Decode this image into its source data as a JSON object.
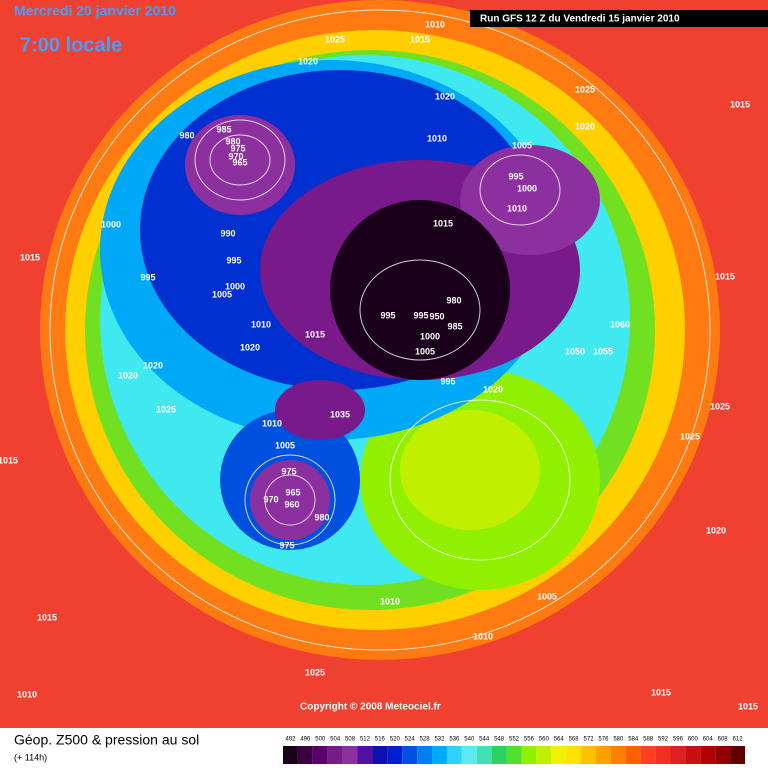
{
  "header": {
    "date": "Mercredi 20 janvier 2010",
    "time": "7:00 locale",
    "run": "Run GFS 12 Z du Vendredi 15 janvier 2010"
  },
  "copyright": "Copyright © 2008 Meteociel.fr",
  "legend": {
    "title": "Géop. Z500 & pression au sol",
    "lead": "(+ 114h)",
    "scale": [
      492,
      496,
      500,
      504,
      508,
      512,
      516,
      520,
      524,
      528,
      532,
      536,
      540,
      544,
      548,
      552,
      556,
      560,
      564,
      568,
      572,
      576,
      580,
      584,
      588,
      592,
      596,
      600,
      604,
      608,
      612
    ],
    "colors": [
      "#1a001a",
      "#3c0040",
      "#5a006a",
      "#781a8a",
      "#8c30a0",
      "#5010a0",
      "#1010b0",
      "#0020d0",
      "#0050e0",
      "#0080f0",
      "#00a8f8",
      "#30d0ff",
      "#60e8f0",
      "#40e0b0",
      "#30d060",
      "#50e030",
      "#90f000",
      "#c0f000",
      "#f0f000",
      "#ffe000",
      "#ffc000",
      "#ffa000",
      "#ff8000",
      "#ff6000",
      "#ff4020",
      "#f03020",
      "#e02020",
      "#c81010",
      "#b00000",
      "#900000",
      "#600000"
    ]
  },
  "isobar_labels": [
    1010,
    1015,
    1025,
    1020,
    1020,
    1025,
    1015,
    1020,
    980,
    985,
    980,
    975,
    970,
    965,
    1010,
    1005,
    995,
    1000,
    1010,
    1015,
    1000,
    990,
    995,
    995,
    1000,
    1005,
    1015,
    1015,
    980,
    995,
    995,
    950,
    985,
    1000,
    1005,
    1010,
    1015,
    1020,
    1060,
    1050,
    1055,
    1020,
    1020,
    995,
    1020,
    1035,
    1025,
    1025,
    1010,
    1005,
    1025,
    975,
    965,
    970,
    960,
    980,
    975,
    1015,
    1020,
    1010,
    1010,
    1015,
    1025,
    1015,
    1010,
    1015,
    1005
  ]
}
